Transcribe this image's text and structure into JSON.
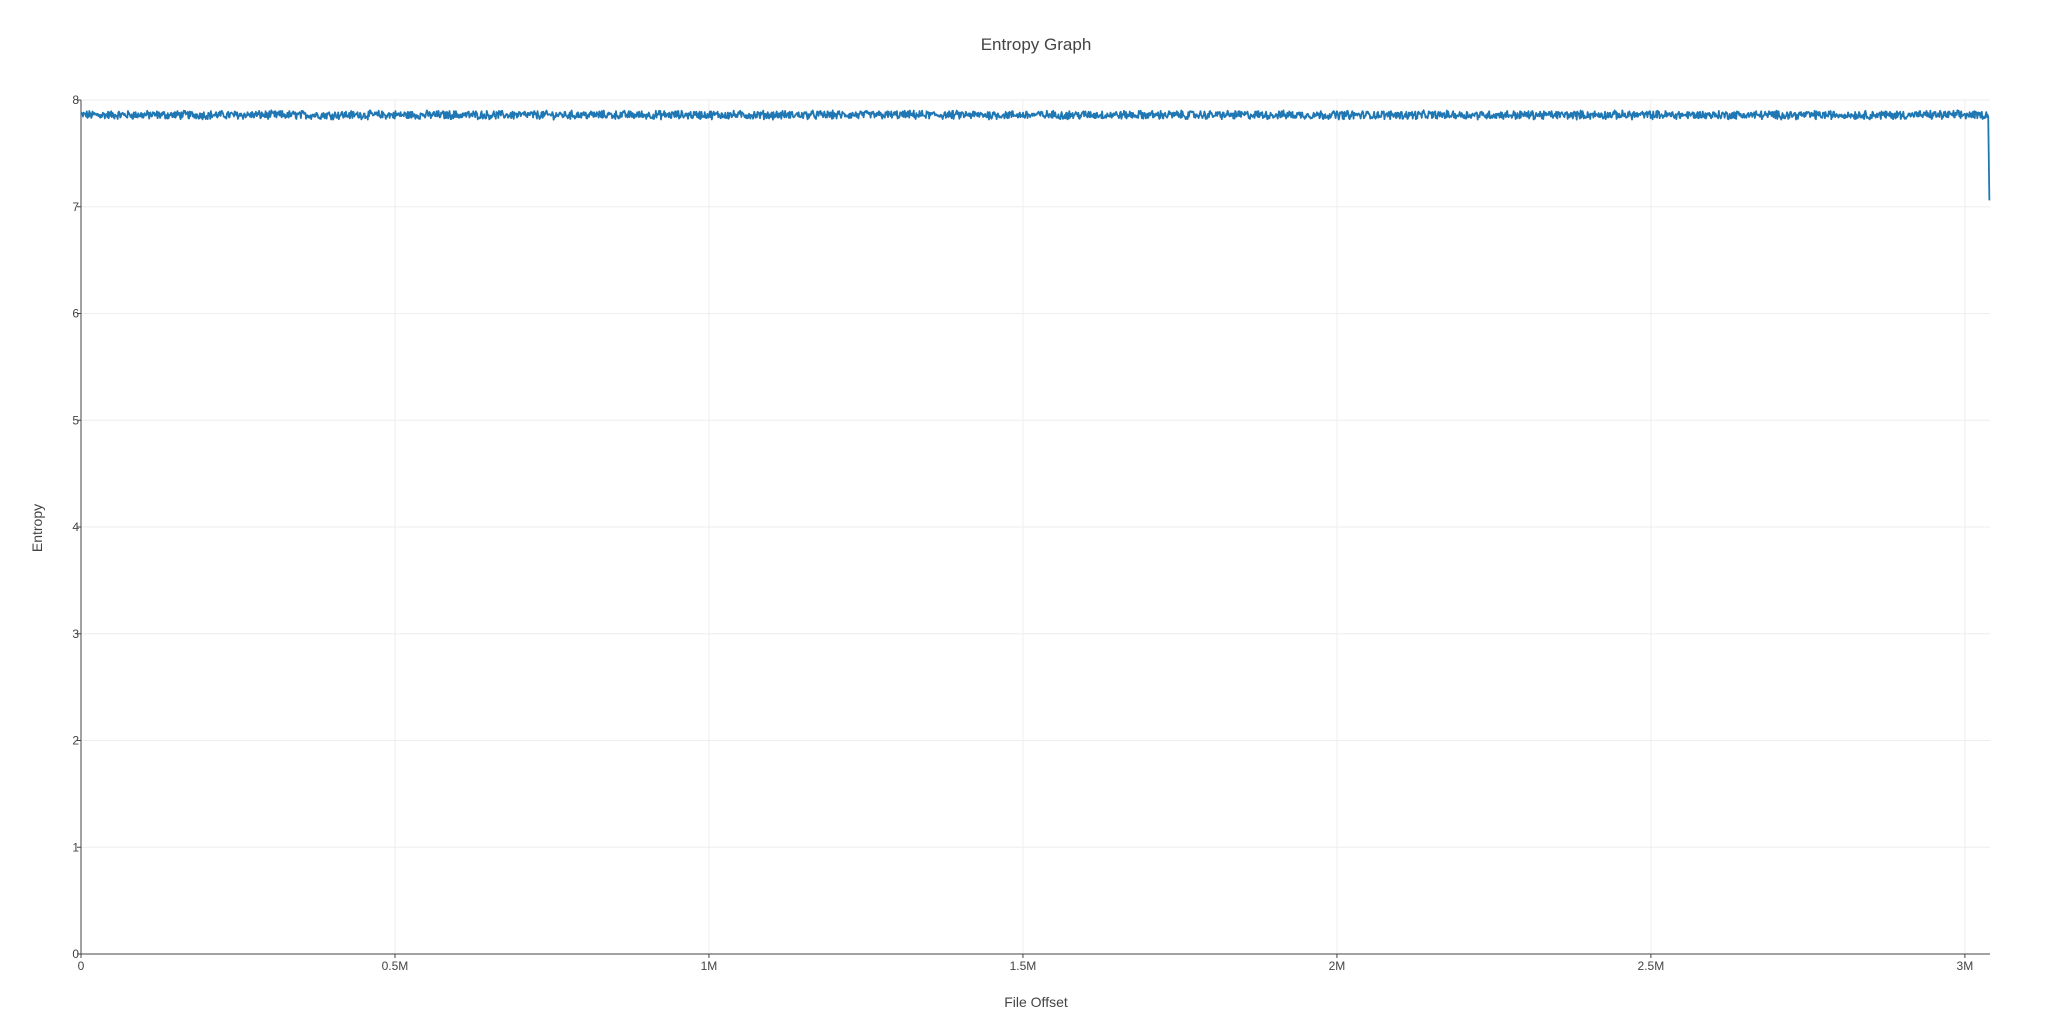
{
  "chart_data": {
    "type": "line",
    "title": "Entropy Graph",
    "xlabel": "File Offset",
    "ylabel": "Entropy",
    "xlim": [
      0,
      3040000
    ],
    "ylim": [
      0,
      8
    ],
    "x_ticks": [
      {
        "value": 0,
        "label": "0"
      },
      {
        "value": 500000,
        "label": "0.5M"
      },
      {
        "value": 1000000,
        "label": "1M"
      },
      {
        "value": 1500000,
        "label": "1.5M"
      },
      {
        "value": 2000000,
        "label": "2M"
      },
      {
        "value": 2500000,
        "label": "2.5M"
      },
      {
        "value": 3000000,
        "label": "3M"
      }
    ],
    "y_ticks": [
      {
        "value": 0,
        "label": "0"
      },
      {
        "value": 1,
        "label": "1"
      },
      {
        "value": 2,
        "label": "2"
      },
      {
        "value": 3,
        "label": "3"
      },
      {
        "value": 4,
        "label": "4"
      },
      {
        "value": 5,
        "label": "5"
      },
      {
        "value": 6,
        "label": "6"
      },
      {
        "value": 7,
        "label": "7"
      },
      {
        "value": 8,
        "label": "8"
      }
    ],
    "grid": true,
    "series_color": "#1f77b4",
    "series": [
      {
        "x_start": 0,
        "x_step": 1024,
        "baseline": 7.86,
        "jitter": 0.035,
        "x": [
          0,
          500000,
          1000000,
          1500000,
          2000000,
          2500000,
          3000000,
          3030000,
          3038000,
          3039000
        ],
        "y": [
          7.86,
          7.86,
          7.86,
          7.86,
          7.86,
          7.86,
          7.86,
          7.86,
          7.86,
          7.06
        ]
      }
    ]
  }
}
